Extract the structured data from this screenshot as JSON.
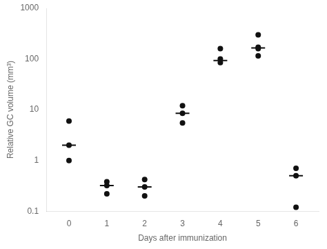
{
  "chart_data": {
    "type": "scatter",
    "xlabel": "Days after immunization",
    "ylabel": "Relative GC volume (mm³)",
    "log": "y",
    "grid": false,
    "xlim": [
      -0.6,
      6.6
    ],
    "xticks": [
      0,
      1,
      2,
      3,
      4,
      5,
      6
    ],
    "ylim": [
      0.1,
      1000
    ],
    "yticks": [
      0.1,
      1,
      10,
      100,
      1000
    ],
    "series": [
      {
        "type": "scatter",
        "marker": "circle",
        "color": "#111111",
        "x": [
          0,
          0,
          0,
          1,
          1,
          1,
          2,
          2,
          2,
          3,
          3,
          3,
          4,
          4,
          4,
          5,
          5,
          5,
          5,
          6,
          6,
          6
        ],
        "values": [
          6.0,
          2.0,
          1.0,
          0.22,
          0.32,
          0.38,
          0.2,
          0.3,
          0.42,
          12.0,
          8.5,
          5.5,
          100.0,
          85.0,
          160.0,
          300.0,
          170.0,
          160.0,
          115.0,
          0.12,
          0.5,
          0.7
        ]
      },
      {
        "type": "scatter",
        "marker": "line",
        "color": "#111111",
        "x": [
          0,
          1,
          2,
          3,
          4,
          5,
          6
        ],
        "values": [
          2.0,
          0.32,
          0.3,
          8.5,
          93.0,
          165.0,
          0.5
        ]
      }
    ]
  }
}
